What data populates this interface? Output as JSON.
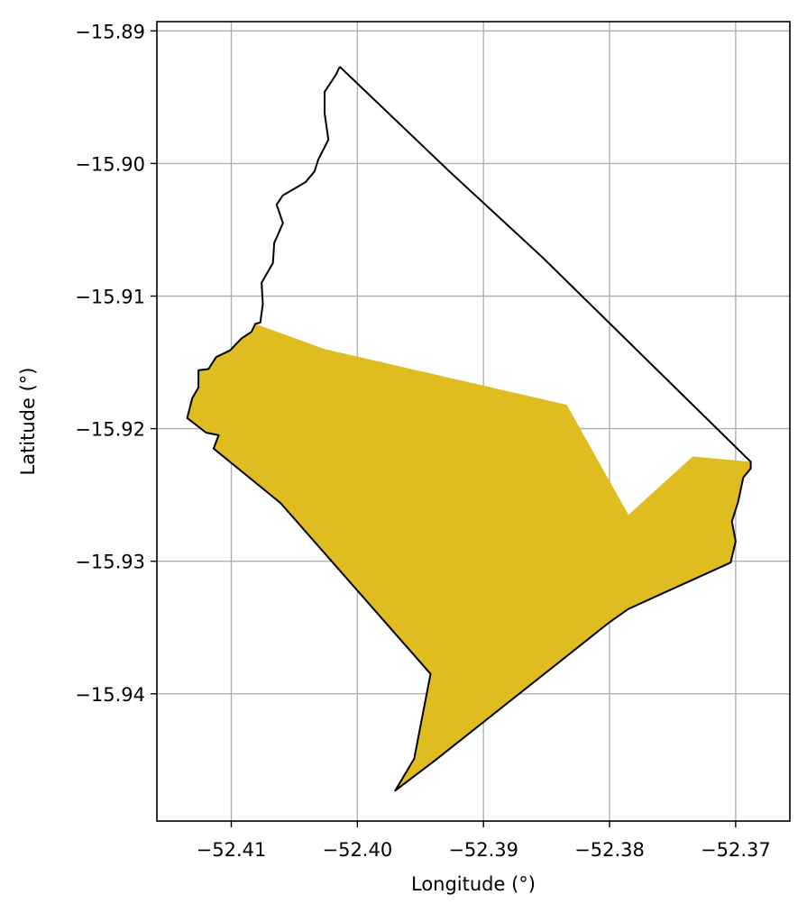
{
  "chart_data": {
    "type": "map",
    "xlabel": "Longitude (°)",
    "ylabel": "Latitude (°)",
    "xlim": [
      -52.4159,
      -52.3657
    ],
    "ylim": [
      -15.9496,
      -15.8893
    ],
    "grid": true,
    "x_ticks": [
      {
        "value": -52.41,
        "label": "−52.41"
      },
      {
        "value": -52.4,
        "label": "−52.40"
      },
      {
        "value": -52.39,
        "label": "−52.39"
      },
      {
        "value": -52.38,
        "label": "−52.38"
      },
      {
        "value": -52.37,
        "label": "−52.37"
      }
    ],
    "y_ticks": [
      {
        "value": -15.89,
        "label": "−15.89"
      },
      {
        "value": -15.9,
        "label": "−15.90"
      },
      {
        "value": -15.91,
        "label": "−15.91"
      },
      {
        "value": -15.92,
        "label": "−15.92"
      },
      {
        "value": -15.93,
        "label": "−15.93"
      },
      {
        "value": -15.94,
        "label": "−15.94"
      }
    ],
    "colors": {
      "fill": "#dfbc1f",
      "outline": "#000000",
      "grid": "#b0b0b0"
    },
    "layers": [
      {
        "kind": "filled-area",
        "polygons": [
          [
            [
              -52.4081,
              -15.9121
            ],
            [
              -52.4026,
              -15.914
            ],
            [
              -52.3834,
              -15.9182
            ],
            [
              -52.3785,
              -15.9265
            ],
            [
              -52.3734,
              -15.9221
            ],
            [
              -52.3688,
              -15.9225
            ],
            [
              -52.3688,
              -15.923
            ],
            [
              -52.3694,
              -15.9237
            ],
            [
              -52.3698,
              -15.9255
            ],
            [
              -52.3703,
              -15.927
            ],
            [
              -52.37,
              -15.9285
            ],
            [
              -52.3704,
              -15.9301
            ],
            [
              -52.3785,
              -15.9336
            ],
            [
              -52.3813,
              -15.9274
            ],
            [
              -52.3785,
              -15.9265
            ],
            [
              -52.3813,
              -15.9274
            ],
            [
              -52.3785,
              -15.9336
            ],
            [
              -52.38,
              -15.9346
            ],
            [
              -52.3938,
              -15.945
            ],
            [
              -52.397,
              -15.9473
            ],
            [
              -52.3955,
              -15.9449
            ],
            [
              -52.3942,
              -15.9385
            ],
            [
              -52.4061,
              -15.9256
            ],
            [
              -52.4114,
              -15.9215
            ],
            [
              -52.411,
              -15.9205
            ],
            [
              -52.412,
              -15.9203
            ],
            [
              -52.4135,
              -15.9192
            ],
            [
              -52.4131,
              -15.9177
            ],
            [
              -52.4126,
              -15.9169
            ],
            [
              -52.4126,
              -15.9156
            ],
            [
              -52.4118,
              -15.9155
            ],
            [
              -52.4112,
              -15.9146
            ],
            [
              -52.4101,
              -15.9141
            ],
            [
              -52.4092,
              -15.9132
            ],
            [
              -52.4084,
              -15.9127
            ],
            [
              -52.4081,
              -15.9121
            ]
          ]
        ]
      },
      {
        "kind": "boundary-outline",
        "lines": [
          [
            [
              -52.4014,
              -15.8927
            ],
            [
              -52.4017,
              -15.8933
            ],
            [
              -52.4026,
              -15.8946
            ],
            [
              -52.4026,
              -15.8962
            ],
            [
              -52.4023,
              -15.8982
            ],
            [
              -52.4031,
              -15.8997
            ],
            [
              -52.4034,
              -15.9006
            ],
            [
              -52.4041,
              -15.9014
            ],
            [
              -52.4059,
              -15.9024
            ],
            [
              -52.4064,
              -15.9031
            ],
            [
              -52.4059,
              -15.9045
            ],
            [
              -52.4066,
              -15.906
            ],
            [
              -52.4067,
              -15.9075
            ],
            [
              -52.4076,
              -15.909
            ],
            [
              -52.4075,
              -15.9106
            ],
            [
              -52.4077,
              -15.912
            ],
            [
              -52.4081,
              -15.9121
            ],
            [
              -52.4084,
              -15.9127
            ],
            [
              -52.4092,
              -15.9132
            ],
            [
              -52.4101,
              -15.9141
            ],
            [
              -52.4112,
              -15.9146
            ],
            [
              -52.4118,
              -15.9155
            ],
            [
              -52.4126,
              -15.9156
            ],
            [
              -52.4126,
              -15.9169
            ],
            [
              -52.4131,
              -15.9177
            ],
            [
              -52.4135,
              -15.9192
            ],
            [
              -52.412,
              -15.9203
            ],
            [
              -52.411,
              -15.9205
            ],
            [
              -52.4114,
              -15.9215
            ],
            [
              -52.4061,
              -15.9256
            ],
            [
              -52.3942,
              -15.9385
            ],
            [
              -52.3955,
              -15.9449
            ],
            [
              -52.397,
              -15.9473
            ],
            [
              -52.3938,
              -15.945
            ],
            [
              -52.38,
              -15.9346
            ],
            [
              -52.3785,
              -15.9336
            ],
            [
              -52.3704,
              -15.9301
            ],
            [
              -52.37,
              -15.9285
            ],
            [
              -52.3703,
              -15.927
            ],
            [
              -52.3698,
              -15.9255
            ],
            [
              -52.3694,
              -15.9237
            ],
            [
              -52.3688,
              -15.923
            ],
            [
              -52.3688,
              -15.9225
            ],
            [
              -52.3853,
              -15.9071
            ],
            [
              -52.3927,
              -15.9006
            ],
            [
              -52.4014,
              -15.8927
            ]
          ]
        ]
      }
    ]
  }
}
